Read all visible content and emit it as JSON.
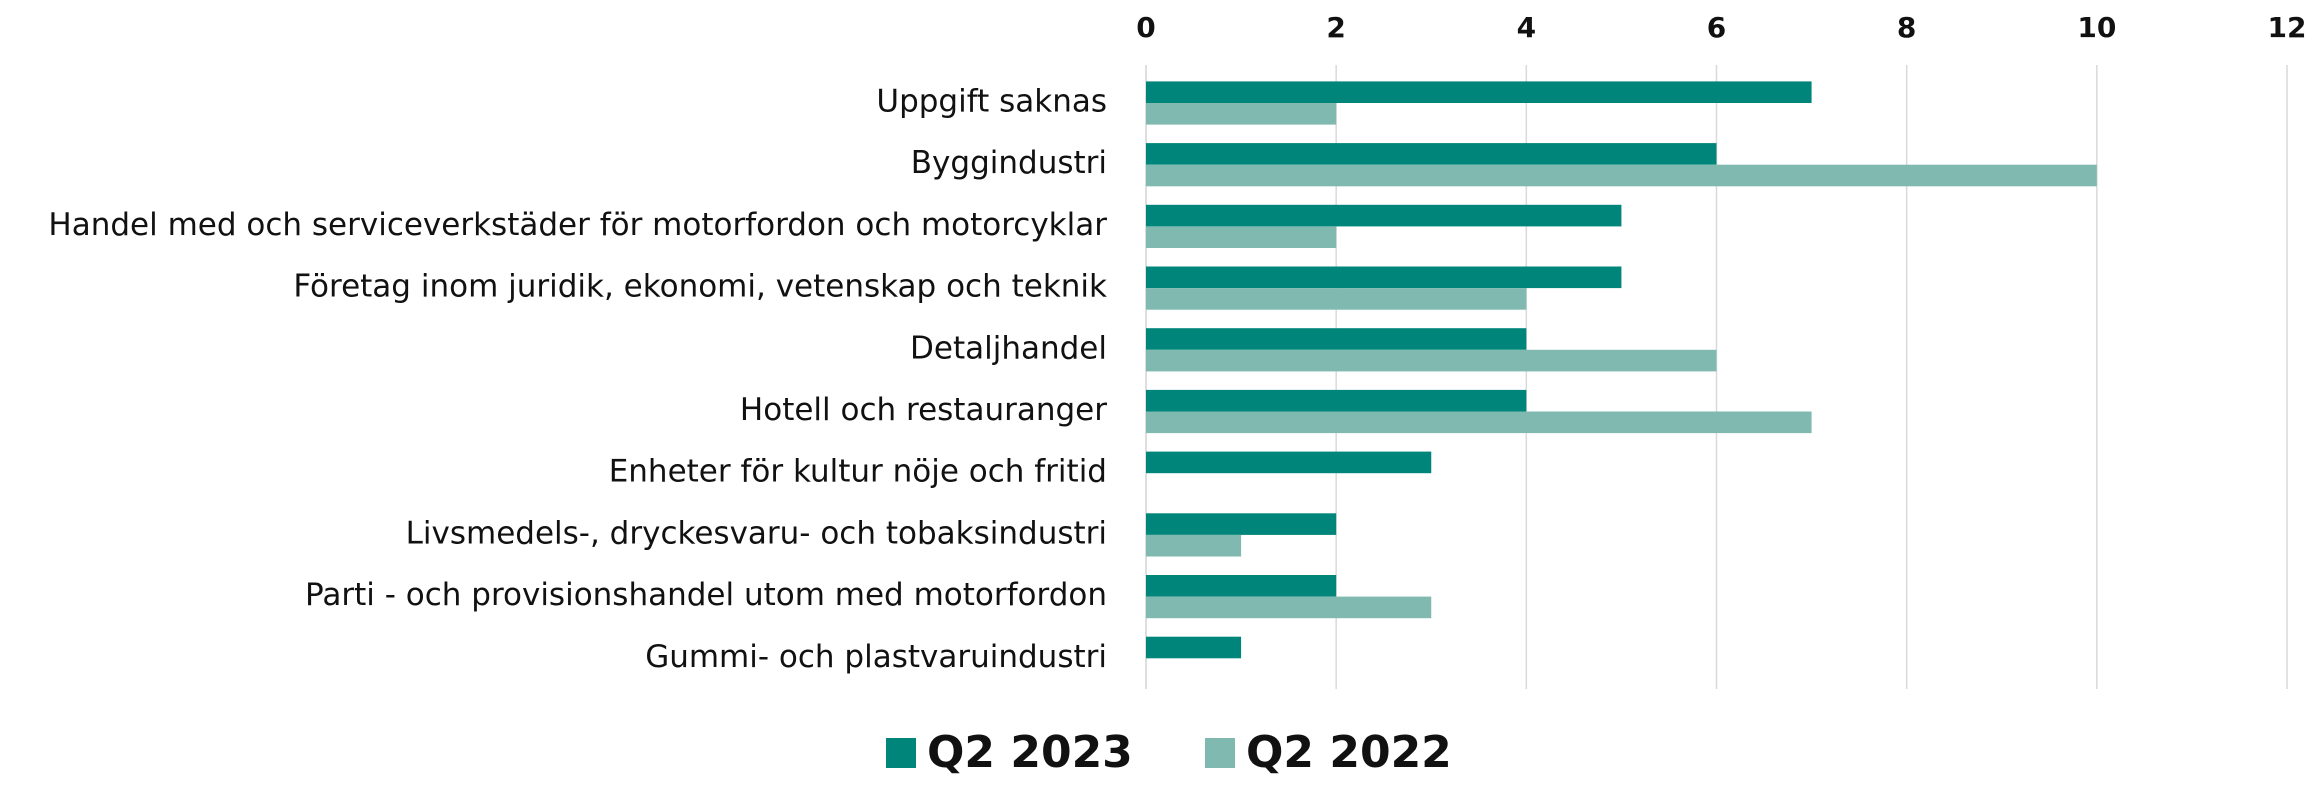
{
  "chart_data": {
    "type": "hbar",
    "categories": [
      "Uppgift saknas",
      "Byggindustri",
      "Handel med och serviceverkstäder för motorfordon och motorcyklar",
      "Företag inom juridik, ekonomi, vetenskap och teknik",
      "Detaljhandel ",
      "Hotell och restauranger",
      "Enheter för kultur nöje och fritid",
      "Livsmedels-, dryckesvaru- och tobaksindustri",
      "Parti - och provisionshandel utom med motorfordon",
      "Gummi- och plastvaruindustri"
    ],
    "series": [
      {
        "name": "Q2 2023",
        "color": "#00857a",
        "values": [
          7,
          6,
          5,
          5,
          4,
          4,
          3,
          2,
          2,
          1
        ]
      },
      {
        "name": "Q2 2022",
        "color": "#80b9b0",
        "values": [
          2,
          10,
          2,
          4,
          6,
          7,
          0,
          1,
          3,
          0
        ]
      }
    ],
    "xlim": [
      0,
      12
    ],
    "xticks": [
      0,
      2,
      4,
      6,
      8,
      10,
      12
    ],
    "grid": true,
    "legend": "bottom"
  }
}
